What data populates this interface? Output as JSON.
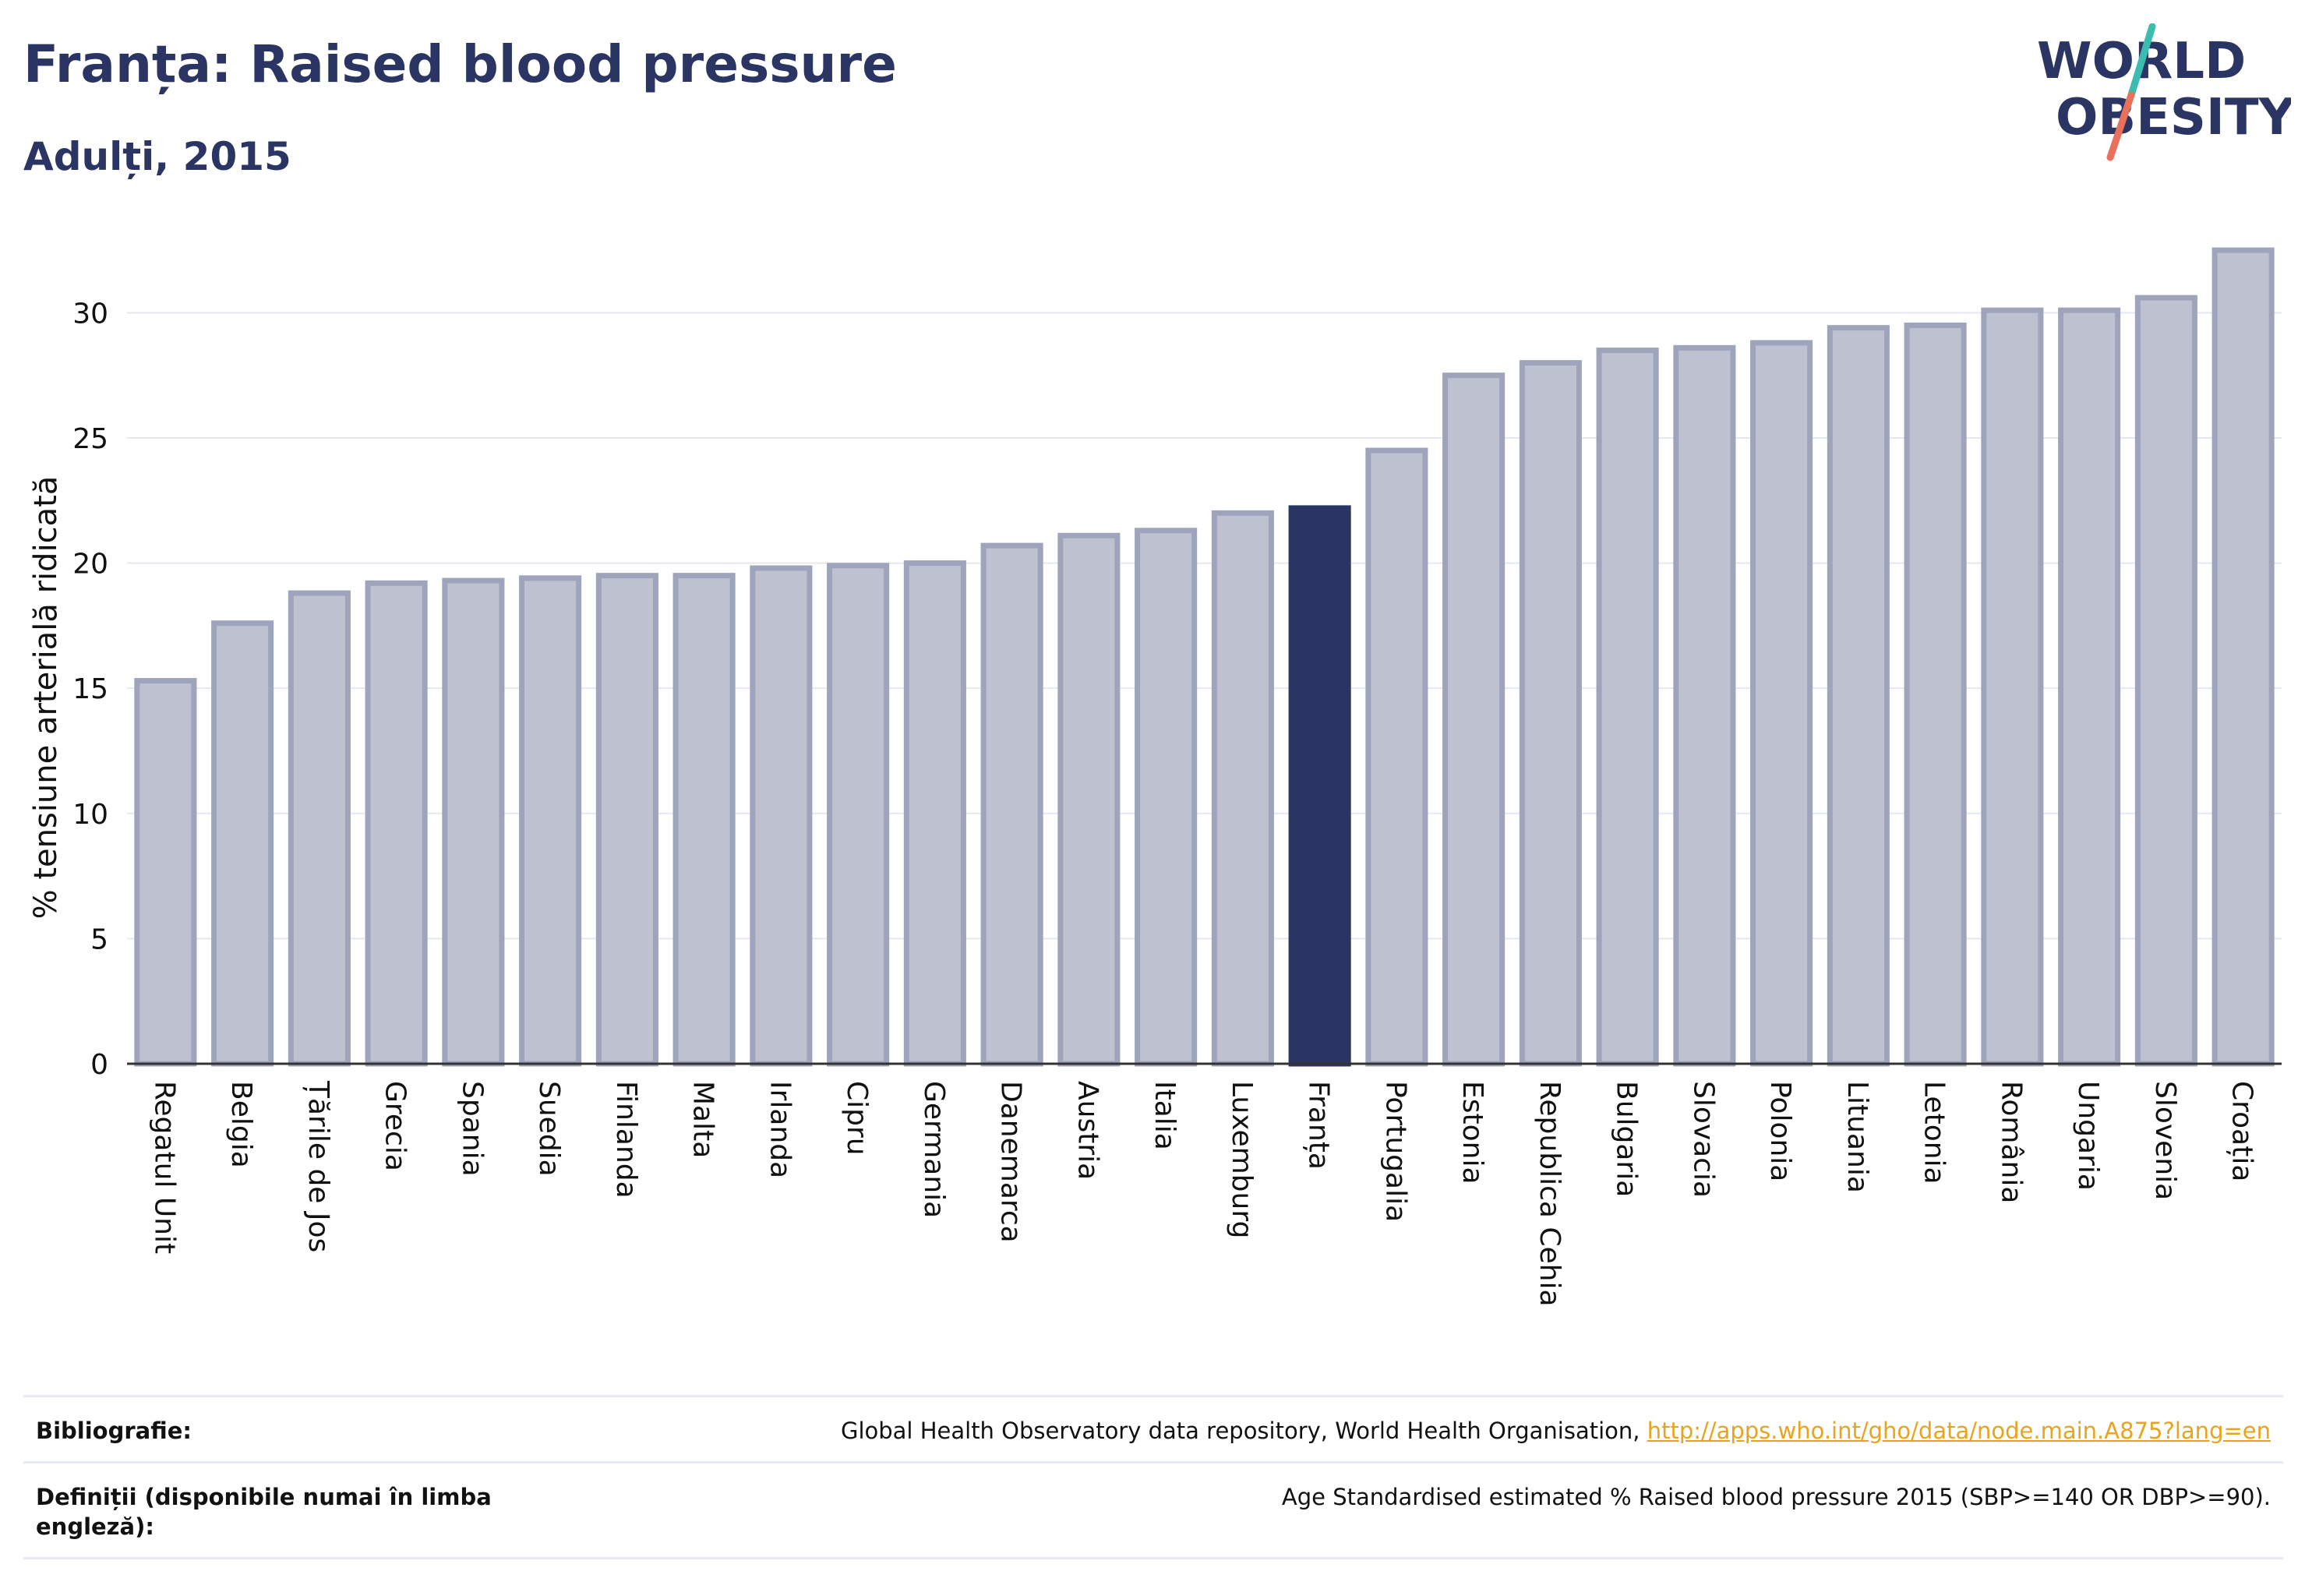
{
  "header": {
    "title": "Franța: Raised blood pressure",
    "subtitle": "Adulți, 2015"
  },
  "logo": {
    "line1": "WORLD",
    "line2": "OBESITY"
  },
  "colors": {
    "highlight": "#2b3563",
    "bar_fill": "#bec2d0",
    "bar_stroke": "#9ea4bb",
    "grid": "#e6e8ef",
    "axis_text": "#111111",
    "link": "#e8a41c",
    "logo_teal": "#3bbcb0",
    "logo_coral": "#e9705a"
  },
  "chart_data": {
    "type": "bar",
    "ylabel": "% tensiune arterială ridicată",
    "ylim": [
      0,
      33
    ],
    "yticks": [
      0,
      5,
      10,
      15,
      20,
      25,
      30
    ],
    "grid": true,
    "highlight": "Franța",
    "categories": [
      "Regatul Unit",
      "Belgia",
      "Țările de Jos",
      "Grecia",
      "Spania",
      "Suedia",
      "Finlanda",
      "Malta",
      "Irlanda",
      "Cipru",
      "Germania",
      "Danemarca",
      "Austria",
      "Italia",
      "Luxemburg",
      "Franța",
      "Portugalia",
      "Estonia",
      "Republica Cehia",
      "Bulgaria",
      "Slovacia",
      "Polonia",
      "Lituania",
      "Letonia",
      "România",
      "Ungaria",
      "Slovenia",
      "Croația"
    ],
    "values": [
      15.3,
      17.6,
      18.8,
      19.2,
      19.3,
      19.4,
      19.5,
      19.5,
      19.8,
      19.9,
      20.0,
      20.7,
      21.1,
      21.3,
      22.0,
      22.2,
      24.5,
      27.5,
      28.0,
      28.5,
      28.6,
      28.8,
      29.4,
      29.5,
      30.1,
      30.1,
      30.6,
      32.5
    ]
  },
  "footer": {
    "bib_label": "Bibliografie:",
    "bib_text": "Global Health Observatory data repository, World Health Organisation, ",
    "bib_link": "http://apps.who.int/gho/data/node.main.A875?lang=en",
    "def_label": "Definiții (disponibile numai în limba engleză):",
    "def_text": "Age Standardised estimated % Raised blood pressure 2015 (SBP>=140 OR DBP>=90)."
  }
}
